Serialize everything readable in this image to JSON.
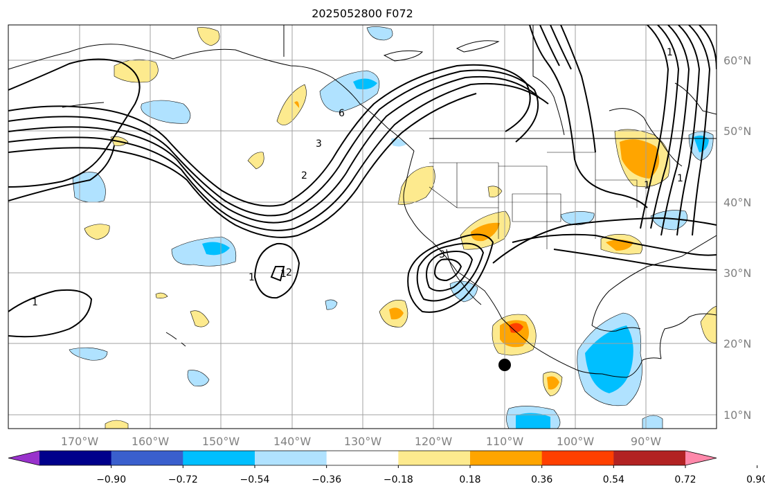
{
  "title": "2025052800 F072",
  "map": {
    "lat_labels": [
      "60°N",
      "50°N",
      "40°N",
      "30°N",
      "20°N",
      "10°N"
    ],
    "lon_labels": [
      "170°W",
      "160°W",
      "150°W",
      "140°W",
      "130°W",
      "120°W",
      "110°W",
      "100°W",
      "90°W"
    ],
    "contour_labels": [
      "1",
      "1",
      "1",
      "3",
      "2",
      "6",
      "3",
      "2",
      "1",
      "1",
      "1"
    ],
    "marker": "storm-center-dot"
  },
  "colorbar": {
    "labels": [
      "−0.90",
      "−0.72",
      "−0.54",
      "−0.36",
      "−0.18",
      "0.18",
      "0.36",
      "0.54",
      "0.72",
      "0.90"
    ],
    "colors": [
      "#9932cc",
      "#00008b",
      "#3a5fcd",
      "#00bfff",
      "#b0e2ff",
      "#ffffff",
      "#fdea8e",
      "#ffa500",
      "#ff4000",
      "#b22222",
      "#ff88aa"
    ]
  }
}
